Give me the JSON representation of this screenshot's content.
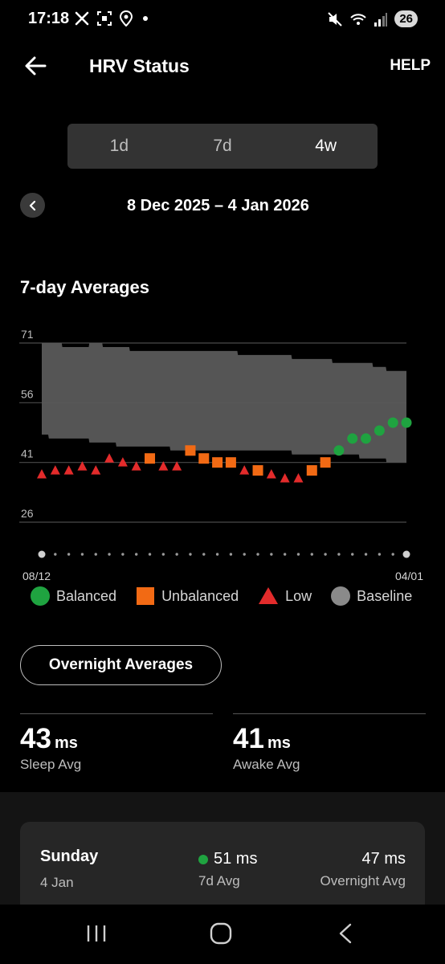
{
  "status_bar": {
    "time": "17:18",
    "left_icons": [
      "x-icon",
      "screenshot-icon",
      "location-icon",
      "dot-icon"
    ],
    "right_icons": [
      "mute-icon",
      "wifi-icon",
      "signal-icon"
    ],
    "battery": "26"
  },
  "header": {
    "title": "HRV Status",
    "help_label": "HELP"
  },
  "range_tabs": {
    "items": [
      {
        "label": "1d",
        "active": false
      },
      {
        "label": "7d",
        "active": false
      },
      {
        "label": "4w",
        "active": true
      }
    ]
  },
  "date_nav": {
    "range": "8 Dec 2025 – 4 Jan 2026"
  },
  "section": {
    "title": "7-day Averages"
  },
  "chart_data": {
    "type": "scatter",
    "title": "7-day Averages",
    "y_ticks": [
      "71",
      "56",
      "41",
      "26"
    ],
    "ylim": [
      26,
      71
    ],
    "x_range_labels": [
      "08/12",
      "04/01"
    ],
    "x_start": "2025-12-08",
    "grid": true,
    "baseline_band": {
      "upper": [
        71,
        71,
        70,
        70,
        71,
        70,
        70,
        69,
        69,
        69,
        69,
        69,
        69,
        69,
        69,
        68,
        68,
        68,
        68,
        67,
        67,
        67,
        66,
        66,
        66,
        65,
        64,
        64
      ],
      "lower": [
        48,
        47,
        47,
        47,
        46,
        46,
        45,
        45,
        45,
        45,
        44,
        44,
        44,
        44,
        44,
        44,
        44,
        44,
        44,
        43,
        43,
        43,
        43,
        43,
        42,
        42,
        41,
        41
      ]
    },
    "points": [
      {
        "day": 1,
        "value": 38,
        "status": "low"
      },
      {
        "day": 2,
        "value": 39,
        "status": "low"
      },
      {
        "day": 3,
        "value": 39,
        "status": "low"
      },
      {
        "day": 4,
        "value": 40,
        "status": "low"
      },
      {
        "day": 5,
        "value": 39,
        "status": "low"
      },
      {
        "day": 6,
        "value": 42,
        "status": "low"
      },
      {
        "day": 7,
        "value": 41,
        "status": "low"
      },
      {
        "day": 8,
        "value": 40,
        "status": "low"
      },
      {
        "day": 9,
        "value": 42,
        "status": "unbalanced"
      },
      {
        "day": 10,
        "value": 40,
        "status": "low"
      },
      {
        "day": 11,
        "value": 40,
        "status": "low"
      },
      {
        "day": 12,
        "value": 44,
        "status": "unbalanced"
      },
      {
        "day": 13,
        "value": 42,
        "status": "unbalanced"
      },
      {
        "day": 14,
        "value": 41,
        "status": "unbalanced"
      },
      {
        "day": 15,
        "value": 41,
        "status": "unbalanced"
      },
      {
        "day": 16,
        "value": 39,
        "status": "low"
      },
      {
        "day": 17,
        "value": 39,
        "status": "unbalanced"
      },
      {
        "day": 18,
        "value": 38,
        "status": "low"
      },
      {
        "day": 19,
        "value": 37,
        "status": "low"
      },
      {
        "day": 20,
        "value": 37,
        "status": "low"
      },
      {
        "day": 21,
        "value": 39,
        "status": "unbalanced"
      },
      {
        "day": 22,
        "value": 41,
        "status": "unbalanced"
      },
      {
        "day": 23,
        "value": 44,
        "status": "balanced"
      },
      {
        "day": 24,
        "value": 47,
        "status": "balanced"
      },
      {
        "day": 25,
        "value": 47,
        "status": "balanced"
      },
      {
        "day": 26,
        "value": 49,
        "status": "balanced"
      },
      {
        "day": 27,
        "value": 51,
        "status": "balanced"
      },
      {
        "day": 28,
        "value": 51,
        "status": "balanced"
      }
    ],
    "colors": {
      "balanced": "#1fa340",
      "unbalanced": "#f26a14",
      "low": "#e32b2b",
      "baseline": "#5a5a5a"
    },
    "legend": [
      {
        "label": "Balanced",
        "shape": "circle",
        "color": "#1fa340"
      },
      {
        "label": "Unbalanced",
        "shape": "square",
        "color": "#f26a14"
      },
      {
        "label": "Low",
        "shape": "triangle",
        "color": "#e32b2b"
      },
      {
        "label": "Baseline",
        "shape": "circle",
        "color": "#8a8a8a"
      }
    ],
    "legend_position": "bottom"
  },
  "overnight_button": {
    "label": "Overnight Averages"
  },
  "stats": {
    "sleep": {
      "value": "43",
      "unit": "ms",
      "label": "Sleep Avg"
    },
    "awake": {
      "value": "41",
      "unit": "ms",
      "label": "Awake Avg"
    }
  },
  "day_card": {
    "day": "Sunday",
    "date": "4 Jan",
    "avg7_value": "51 ms",
    "avg7_label": "7d Avg",
    "overnight_value": "47 ms",
    "overnight_label": "Overnight Avg"
  },
  "nav_bar": {
    "buttons": [
      "recents-icon",
      "home-icon",
      "back-icon"
    ]
  }
}
